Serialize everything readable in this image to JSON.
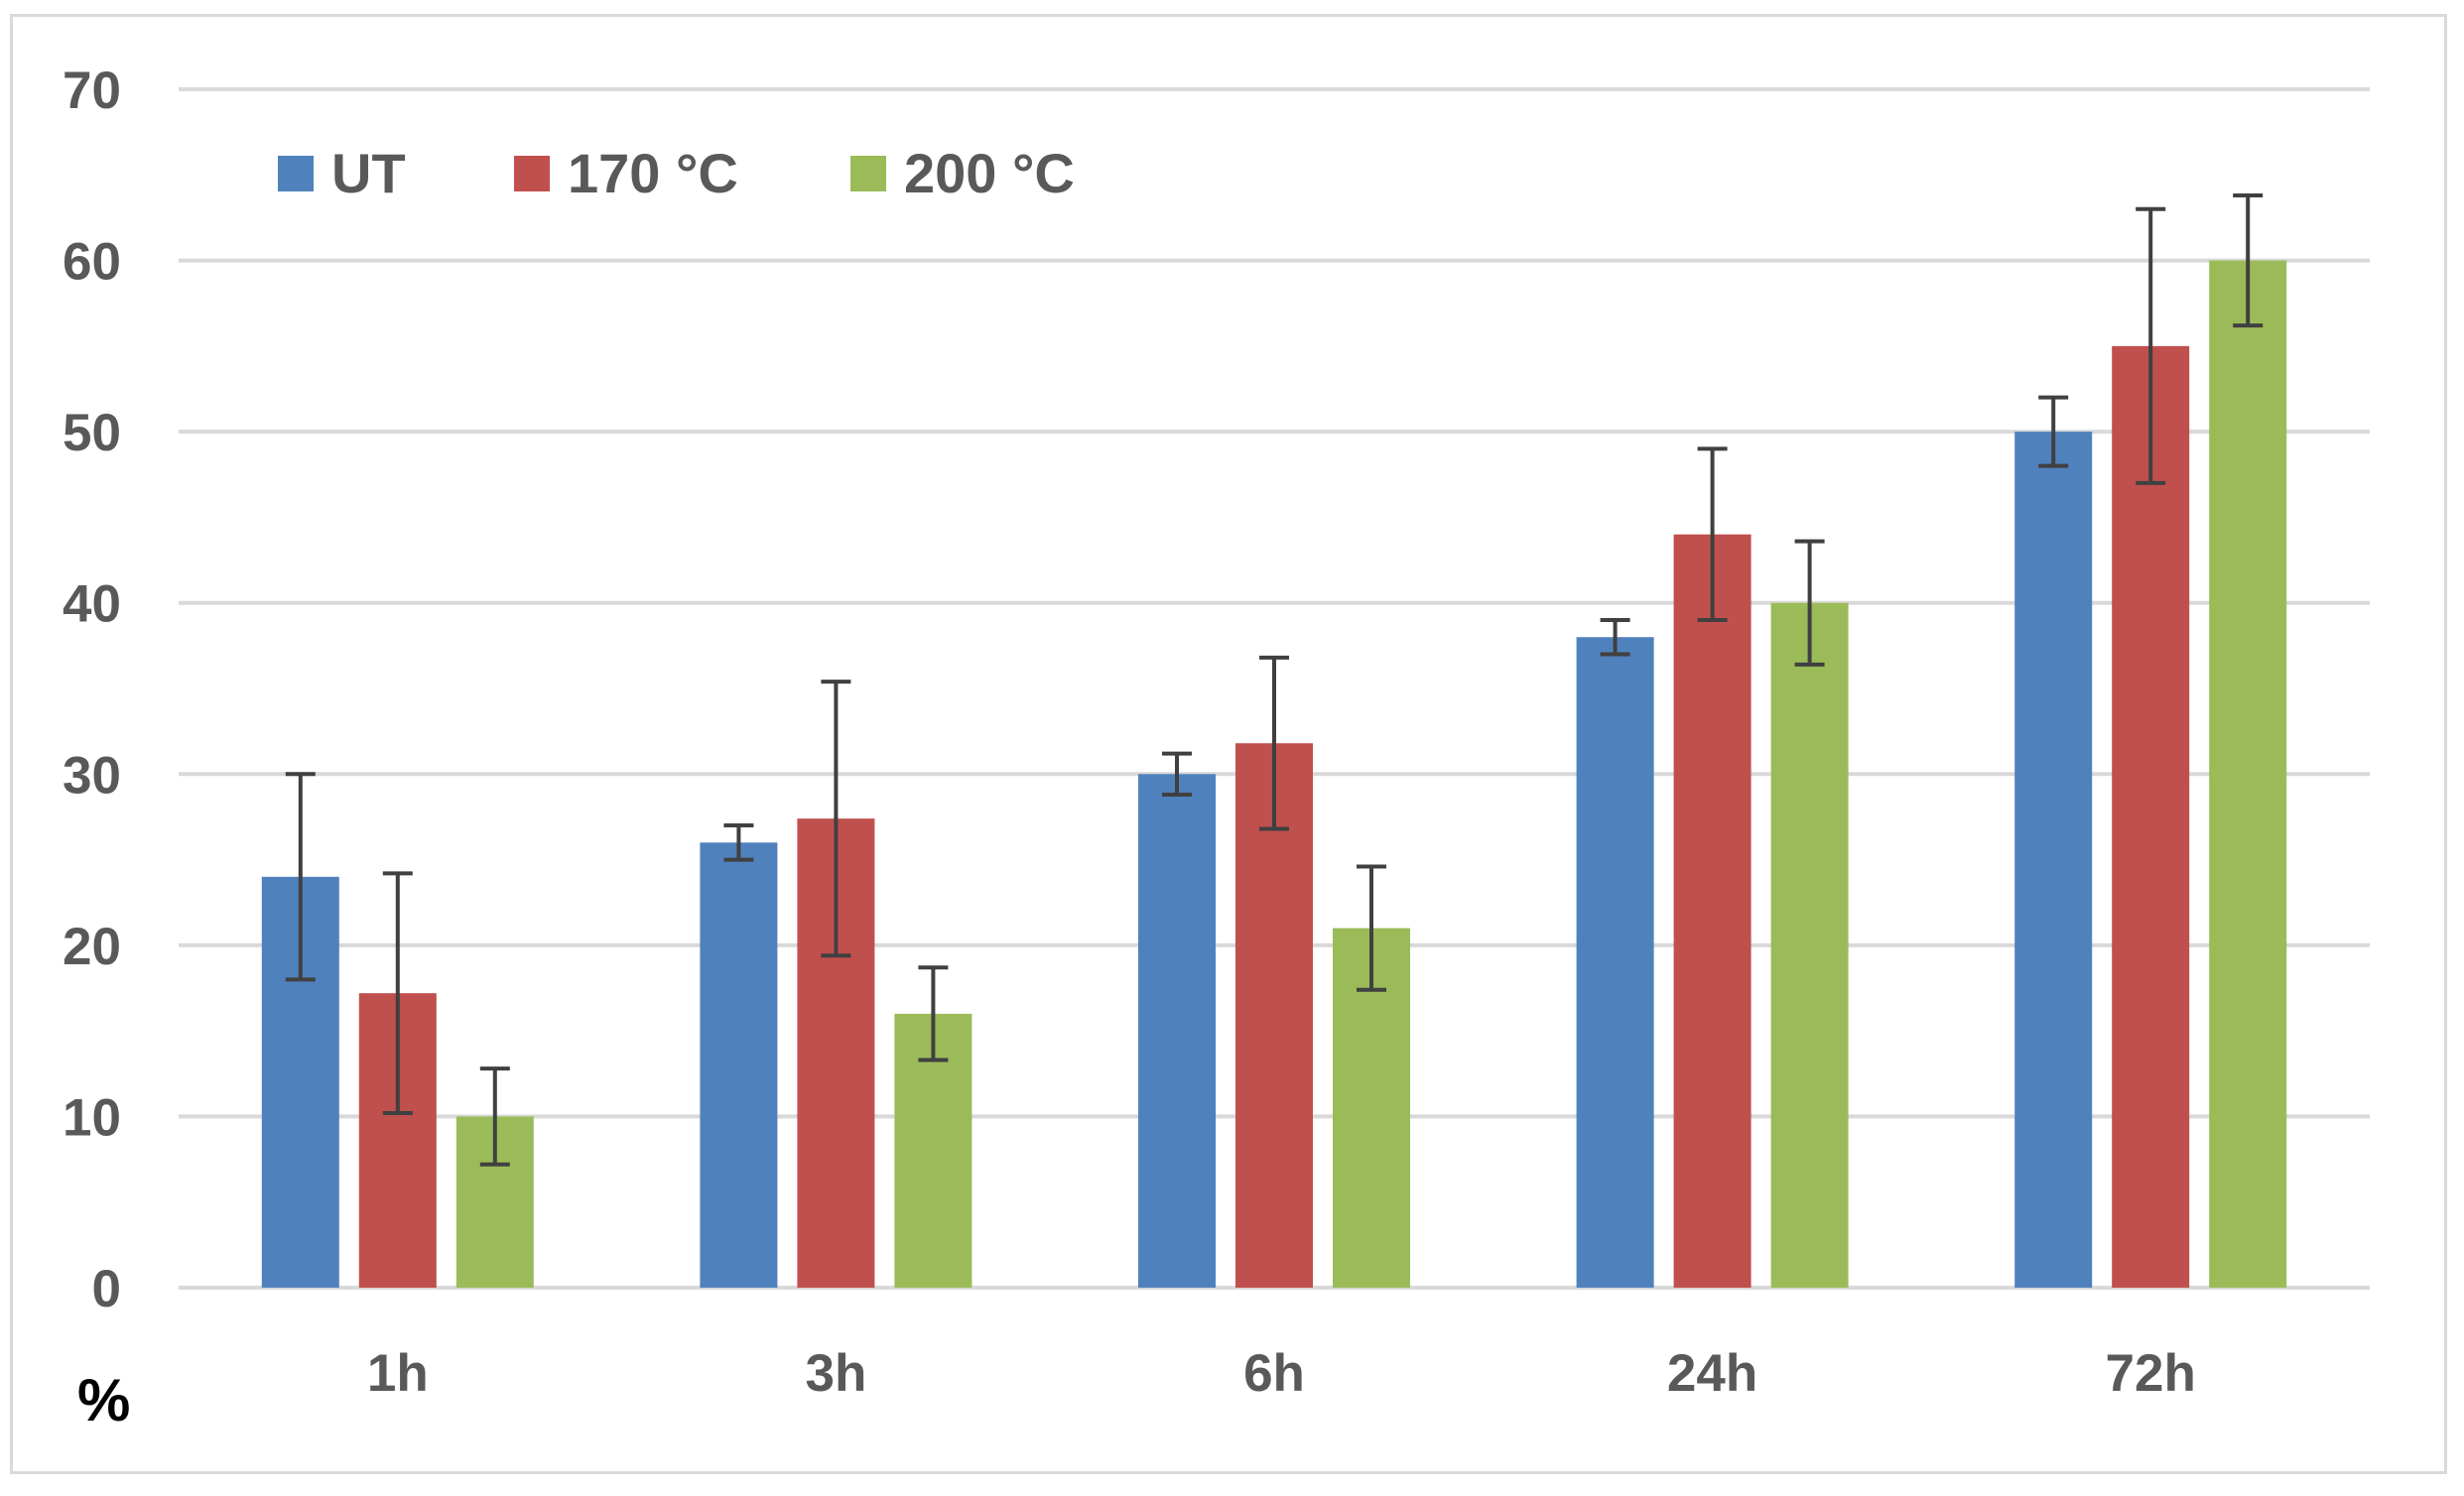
{
  "chart_data": {
    "type": "bar",
    "title": "",
    "xlabel": "",
    "ylabel": "%",
    "categories": [
      "1h",
      "3h",
      "6h",
      "24h",
      "72h"
    ],
    "ylim": [
      0,
      70
    ],
    "yticks": [
      0,
      10,
      20,
      30,
      40,
      50,
      60,
      70
    ],
    "grid": true,
    "legend_position": "top-left",
    "series": [
      {
        "name": "UT",
        "color": "#4f81bd",
        "values": [
          24,
          26,
          30,
          38,
          50
        ],
        "errors": [
          6,
          1,
          1.2,
          1,
          2
        ]
      },
      {
        "name": "170 °C",
        "color": "#c0504d",
        "values": [
          17.2,
          27.4,
          31.8,
          44,
          55
        ],
        "errors": [
          7,
          8,
          5,
          5,
          8
        ]
      },
      {
        "name": "200 °C",
        "color": "#9bbb59",
        "values": [
          10,
          16,
          21,
          40,
          60
        ],
        "errors": [
          2.8,
          2.7,
          3.6,
          3.6,
          3.8
        ]
      }
    ]
  }
}
